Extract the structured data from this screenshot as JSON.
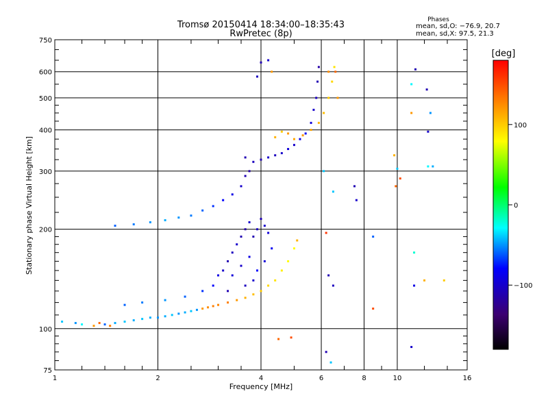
{
  "chart_data": {
    "type": "scatter",
    "title": "Tromsø 20150414 18:34:00–18:35:43",
    "subtitle": "RwPretec (8p)",
    "stats": {
      "heading": "Phases",
      "line_o": "mean, sd,O: −76.9, 20.7",
      "line_x": "mean, sd,X:  97.5, 21.3"
    },
    "xlabel": "Frequency [MHz]",
    "ylabel": "Stationary phase Virtual Height [km]",
    "xscale": "log",
    "yscale": "log",
    "xlim": [
      1,
      16
    ],
    "ylim": [
      75,
      750
    ],
    "xticks": [
      {
        "value": 1,
        "label": "1"
      },
      {
        "value": 2,
        "label": "2"
      },
      {
        "value": 4,
        "label": "4"
      },
      {
        "value": 6,
        "label": "6"
      },
      {
        "value": 8,
        "label": "8"
      },
      {
        "value": 10,
        "label": "10"
      },
      {
        "value": 16,
        "label": "16"
      }
    ],
    "yticks": [
      {
        "value": 75,
        "label": "75"
      },
      {
        "value": 100,
        "label": "100"
      },
      {
        "value": 200,
        "label": "200"
      },
      {
        "value": 300,
        "label": "300"
      },
      {
        "value": 400,
        "label": "400"
      },
      {
        "value": 500,
        "label": "500"
      },
      {
        "value": 600,
        "label": "600"
      },
      {
        "value": 750,
        "label": "750"
      }
    ],
    "grid": true,
    "colorbar": {
      "label": "[deg]",
      "min": -180,
      "max": 180,
      "ticks": [
        {
          "value": 100,
          "label": "100"
        },
        {
          "value": 0,
          "label": "0"
        },
        {
          "value": -100,
          "label": "−100"
        }
      ],
      "stops": [
        "#000000",
        "#3c0070",
        "#0000ff",
        "#00ffff",
        "#00ff00",
        "#ffff00",
        "#ff8000",
        "#ff0000"
      ]
    },
    "points": [
      [
        1.05,
        105,
        -40
      ],
      [
        1.15,
        104,
        -50
      ],
      [
        1.2,
        103,
        -30
      ],
      [
        1.3,
        102,
        120
      ],
      [
        1.35,
        104,
        140
      ],
      [
        1.4,
        103,
        -60
      ],
      [
        1.45,
        102,
        130
      ],
      [
        1.5,
        104,
        -45
      ],
      [
        1.6,
        105,
        -40
      ],
      [
        1.7,
        106,
        -45
      ],
      [
        1.8,
        107,
        -40
      ],
      [
        1.9,
        108,
        -45
      ],
      [
        2.0,
        108,
        -50
      ],
      [
        2.1,
        109,
        -45
      ],
      [
        2.2,
        110,
        -40
      ],
      [
        2.3,
        111,
        -50
      ],
      [
        2.4,
        112,
        -45
      ],
      [
        2.5,
        113,
        -40
      ],
      [
        2.6,
        114,
        -50
      ],
      [
        2.7,
        115,
        120
      ],
      [
        2.8,
        116,
        125
      ],
      [
        2.9,
        117,
        130
      ],
      [
        3.0,
        118,
        128
      ],
      [
        3.2,
        120,
        130
      ],
      [
        3.4,
        122,
        120
      ],
      [
        3.6,
        124,
        110
      ],
      [
        3.8,
        127,
        105
      ],
      [
        4.0,
        130,
        100
      ],
      [
        4.2,
        135,
        95
      ],
      [
        4.4,
        140,
        90
      ],
      [
        4.6,
        150,
        85
      ],
      [
        4.8,
        160,
        80
      ],
      [
        5.0,
        175,
        80
      ],
      [
        5.1,
        185,
        110
      ],
      [
        1.6,
        118,
        -60
      ],
      [
        1.8,
        120,
        -55
      ],
      [
        2.1,
        122,
        -50
      ],
      [
        2.4,
        125,
        -60
      ],
      [
        2.7,
        130,
        -70
      ],
      [
        2.9,
        135,
        -80
      ],
      [
        3.0,
        145,
        -90
      ],
      [
        3.1,
        150,
        -100
      ],
      [
        3.2,
        160,
        -110
      ],
      [
        3.3,
        170,
        -105
      ],
      [
        3.4,
        180,
        -100
      ],
      [
        3.5,
        190,
        -110
      ],
      [
        3.6,
        200,
        -115
      ],
      [
        3.7,
        210,
        -100
      ],
      [
        3.8,
        190,
        -110
      ],
      [
        3.9,
        200,
        -105
      ],
      [
        4.0,
        215,
        -110
      ],
      [
        4.1,
        205,
        -100
      ],
      [
        4.2,
        195,
        -95
      ],
      [
        3.3,
        145,
        -95
      ],
      [
        3.5,
        155,
        -100
      ],
      [
        3.7,
        165,
        -90
      ],
      [
        3.9,
        150,
        -80
      ],
      [
        4.1,
        160,
        -95
      ],
      [
        4.3,
        175,
        -85
      ],
      [
        3.2,
        130,
        -110
      ],
      [
        3.6,
        135,
        -105
      ],
      [
        3.8,
        140,
        -100
      ],
      [
        1.5,
        205,
        -60
      ],
      [
        1.7,
        207,
        -55
      ],
      [
        1.9,
        210,
        -50
      ],
      [
        2.1,
        213,
        -45
      ],
      [
        2.3,
        217,
        -50
      ],
      [
        2.5,
        220,
        -55
      ],
      [
        2.7,
        228,
        -60
      ],
      [
        2.9,
        235,
        -70
      ],
      [
        3.1,
        245,
        -80
      ],
      [
        3.3,
        255,
        -90
      ],
      [
        3.5,
        270,
        -100
      ],
      [
        3.6,
        290,
        -110
      ],
      [
        3.7,
        300,
        -115
      ],
      [
        3.6,
        330,
        -110
      ],
      [
        3.8,
        320,
        -105
      ],
      [
        4.0,
        325,
        -110
      ],
      [
        4.2,
        330,
        -100
      ],
      [
        4.4,
        335,
        -105
      ],
      [
        4.6,
        340,
        -100
      ],
      [
        4.8,
        350,
        -95
      ],
      [
        5.0,
        360,
        -100
      ],
      [
        5.2,
        375,
        -90
      ],
      [
        5.4,
        390,
        -85
      ],
      [
        5.6,
        420,
        -95
      ],
      [
        5.7,
        460,
        -100
      ],
      [
        5.8,
        500,
        -105
      ],
      [
        5.85,
        560,
        -110
      ],
      [
        5.9,
        620,
        -115
      ],
      [
        4.4,
        380,
        110
      ],
      [
        4.6,
        395,
        100
      ],
      [
        4.8,
        390,
        120
      ],
      [
        5.0,
        375,
        115
      ],
      [
        5.3,
        385,
        120
      ],
      [
        5.6,
        400,
        115
      ],
      [
        5.9,
        420,
        110
      ],
      [
        6.1,
        450,
        105
      ],
      [
        6.3,
        500,
        100
      ],
      [
        6.45,
        560,
        95
      ],
      [
        6.55,
        620,
        90
      ],
      [
        6.3,
        600,
        125
      ],
      [
        4.0,
        640,
        -110
      ],
      [
        4.2,
        650,
        -100
      ],
      [
        3.9,
        580,
        -105
      ],
      [
        4.3,
        600,
        120
      ],
      [
        4.5,
        93,
        140
      ],
      [
        4.9,
        94,
        150
      ],
      [
        6.2,
        195,
        160
      ],
      [
        6.3,
        145,
        -110
      ],
      [
        6.5,
        135,
        -105
      ],
      [
        6.2,
        85,
        -110
      ],
      [
        6.4,
        79,
        -40
      ],
      [
        6.5,
        260,
        -40
      ],
      [
        7.5,
        270,
        -110
      ],
      [
        7.6,
        245,
        -100
      ],
      [
        8.5,
        190,
        -60
      ],
      [
        8.5,
        115,
        150
      ],
      [
        9.8,
        335,
        110
      ],
      [
        9.9,
        270,
        140
      ],
      [
        10.0,
        305,
        -40
      ],
      [
        10.2,
        285,
        150
      ],
      [
        11.0,
        450,
        120
      ],
      [
        11.3,
        610,
        -110
      ],
      [
        11.0,
        550,
        -30
      ],
      [
        11.2,
        170,
        -20
      ],
      [
        11.2,
        135,
        -90
      ],
      [
        12.2,
        530,
        -110
      ],
      [
        12.3,
        395,
        -100
      ],
      [
        12.5,
        450,
        -50
      ],
      [
        12.3,
        310,
        -30
      ],
      [
        12.7,
        310,
        -45
      ],
      [
        12.0,
        140,
        110
      ],
      [
        11.0,
        88,
        -100
      ],
      [
        13.7,
        140,
        100
      ],
      [
        6.6,
        600,
        140
      ],
      [
        6.7,
        500,
        120
      ],
      [
        6.1,
        300,
        -40
      ]
    ]
  }
}
